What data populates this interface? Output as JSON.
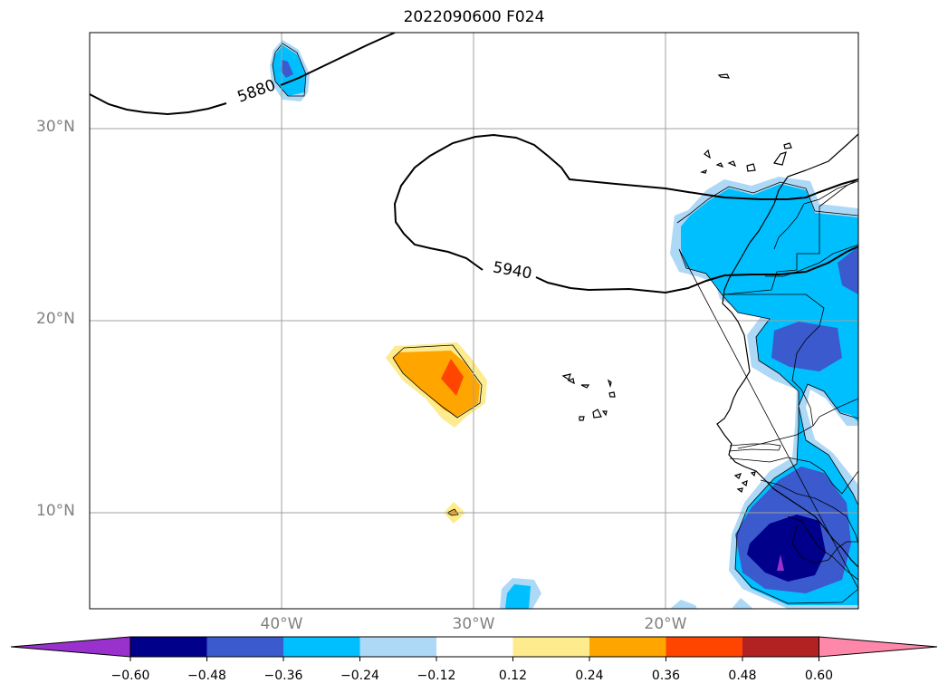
{
  "title": "2022090600 F024",
  "map": {
    "projection": "PlateCarree",
    "lon_range": [
      -49,
      -9
    ],
    "lat_range": [
      5,
      35
    ],
    "lat_ticks": [
      {
        "value": 30,
        "label": "30°N"
      },
      {
        "value": 20,
        "label": "20°N"
      },
      {
        "value": 10,
        "label": "10°N"
      }
    ],
    "lon_ticks": [
      {
        "value": -40,
        "label": "40°W"
      },
      {
        "value": -30,
        "label": "30°W"
      },
      {
        "value": -20,
        "label": "20°W"
      }
    ],
    "grid": true,
    "contour_labels": [
      "5880",
      "5940"
    ]
  },
  "colorbar": {
    "extend": "both",
    "levels": [
      "−0.60",
      "−0.48",
      "−0.36",
      "−0.24",
      "−0.12",
      "0.12",
      "0.24",
      "0.36",
      "0.48",
      "0.60"
    ],
    "colors": [
      "#9932cc",
      "#00008b",
      "#3a5acd",
      "#00bfff",
      "#add8f6",
      "#ffffff",
      "#fdeb8e",
      "#ffa500",
      "#ff4500",
      "#b22222",
      "#ff88aa"
    ]
  }
}
